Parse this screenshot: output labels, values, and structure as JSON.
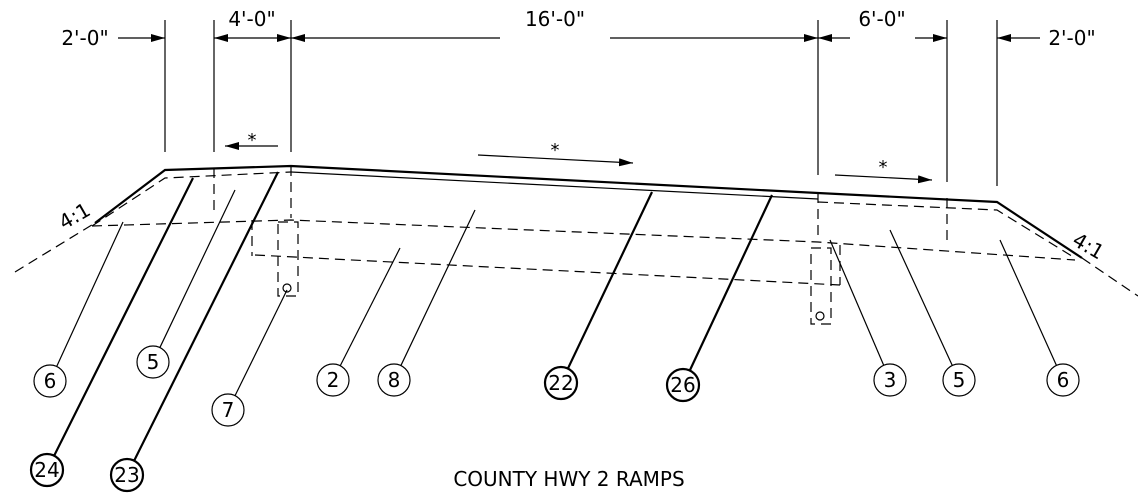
{
  "dimensions": [
    "2'-0\"",
    "4'-0\"",
    "16'-0\"",
    "6'-0\"",
    "2'-0\""
  ],
  "slopes": [
    "4:1",
    "4:1"
  ],
  "slope_arrows": [
    "*",
    "*",
    "*"
  ],
  "callouts": [
    "6",
    "5",
    "7",
    "2",
    "8",
    "22",
    "26",
    "3",
    "5",
    "6",
    "24",
    "23"
  ],
  "title": "COUNTY HWY 2 RAMPS"
}
